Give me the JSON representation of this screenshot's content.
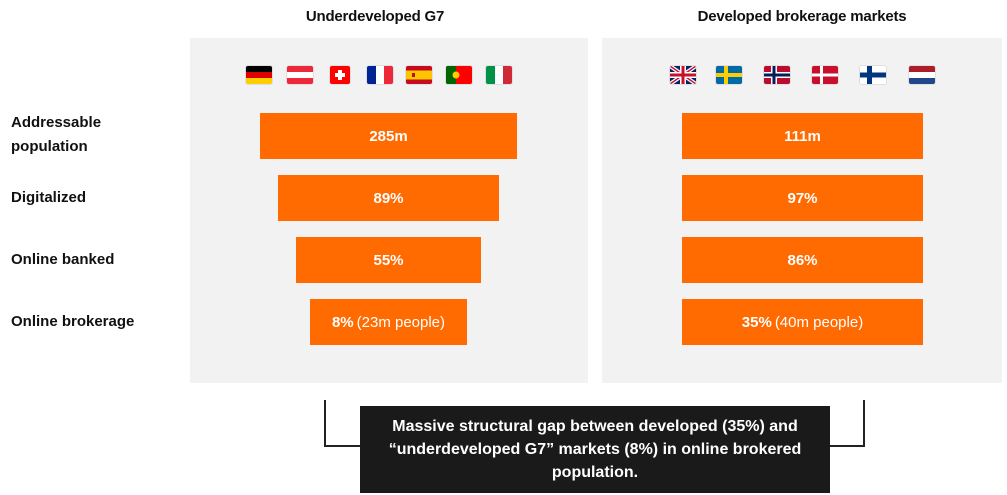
{
  "chart_data": {
    "type": "bar",
    "groups": [
      {
        "title": "Underdeveloped G7",
        "flags": [
          "germany-flag-icon",
          "austria-flag-icon",
          "switzerland-flag-icon",
          "france-flag-icon",
          "spain-flag-icon",
          "portugal-flag-icon",
          "italy-flag-icon"
        ],
        "values": [
          {
            "label": "285m",
            "sub": ""
          },
          {
            "label": "89%",
            "sub": ""
          },
          {
            "label": "55%",
            "sub": ""
          },
          {
            "label": "8%",
            "sub": "(23m people)"
          }
        ]
      },
      {
        "title": "Developed brokerage markets",
        "flags": [
          "uk-flag-icon",
          "sweden-flag-icon",
          "norway-flag-icon",
          "denmark-flag-icon",
          "finland-flag-icon",
          "netherlands-flag-icon"
        ],
        "values": [
          {
            "label": "111m",
            "sub": ""
          },
          {
            "label": "97%",
            "sub": ""
          },
          {
            "label": "86%",
            "sub": ""
          },
          {
            "label": "35%",
            "sub": "(40m people)"
          }
        ]
      }
    ],
    "categories": [
      "Addressable population",
      "Digitalized",
      "Online banked",
      "Online brokerage"
    ],
    "bar_color": "#ff6b00"
  },
  "callout": {
    "text": "Massive structural gap between developed (35%) and “underdeveloped G7” markets (8%) in online brokered population."
  }
}
